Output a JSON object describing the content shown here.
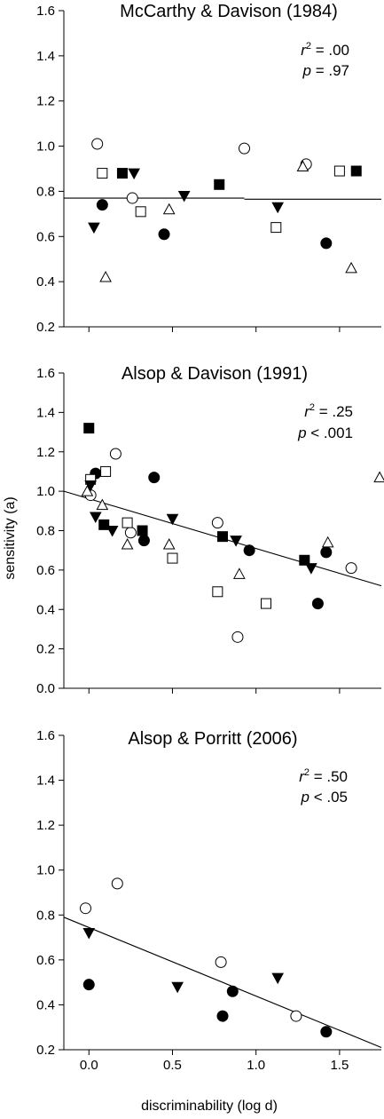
{
  "figure": {
    "ylabel": "sensitivity (a)",
    "xlabel": "discriminability (log d)",
    "x_ticks": [
      "0.0",
      "0.5",
      "1.0",
      "1.5"
    ],
    "xlim": [
      -0.15,
      1.75
    ]
  },
  "chart_data": [
    {
      "type": "scatter",
      "title": "McCarthy & Davison (1984)",
      "stats": {
        "r2_label": "r",
        "r2_sup": "2",
        "r2_value": " = .00",
        "p_label": "p",
        "p_value": " = .97"
      },
      "ylim": [
        0.2,
        1.6
      ],
      "y_ticks": [
        "0.2",
        "0.4",
        "0.6",
        "0.8",
        "1.0",
        "1.2",
        "1.4",
        "1.6"
      ],
      "fit": [
        [
          [
            -0.15,
            0.77
          ],
          [
            0.93,
            0.77
          ]
        ],
        [
          [
            0.93,
            0.765
          ],
          [
            1.75,
            0.765
          ]
        ]
      ],
      "series": [
        {
          "marker": "filled-circle",
          "points": [
            [
              0.08,
              0.74
            ],
            [
              0.45,
              0.61
            ],
            [
              1.42,
              0.57
            ]
          ]
        },
        {
          "marker": "open-circle",
          "points": [
            [
              0.05,
              1.01
            ],
            [
              0.26,
              0.77
            ],
            [
              0.93,
              0.99
            ],
            [
              1.3,
              0.92
            ]
          ]
        },
        {
          "marker": "filled-square",
          "points": [
            [
              0.2,
              0.88
            ],
            [
              0.78,
              0.83
            ],
            [
              1.6,
              0.89
            ]
          ]
        },
        {
          "marker": "open-square",
          "points": [
            [
              0.08,
              0.88
            ],
            [
              0.31,
              0.71
            ],
            [
              1.12,
              0.64
            ],
            [
              1.5,
              0.89
            ]
          ]
        },
        {
          "marker": "filled-triangle-down",
          "points": [
            [
              0.03,
              0.64
            ],
            [
              0.27,
              0.88
            ],
            [
              0.57,
              0.78
            ],
            [
              1.13,
              0.73
            ]
          ]
        },
        {
          "marker": "open-triangle",
          "points": [
            [
              0.1,
              0.42
            ],
            [
              0.48,
              0.72
            ],
            [
              1.28,
              0.91
            ],
            [
              1.57,
              0.46
            ]
          ]
        }
      ]
    },
    {
      "type": "scatter",
      "title": "Alsop & Davison (1991)",
      "stats": {
        "r2_label": "r",
        "r2_sup": "2",
        "r2_value": " = .25",
        "p_label": "p",
        "p_value": " < .001"
      },
      "ylim": [
        0.0,
        1.6
      ],
      "y_ticks": [
        "0.0",
        "0.2",
        "0.4",
        "0.6",
        "0.8",
        "1.0",
        "1.2",
        "1.4",
        "1.6"
      ],
      "fit": [
        [
          [
            -0.15,
            1.0
          ],
          [
            1.75,
            0.52
          ]
        ]
      ],
      "series": [
        {
          "marker": "filled-circle",
          "points": [
            [
              0.04,
              1.09
            ],
            [
              0.33,
              0.75
            ],
            [
              0.39,
              1.07
            ],
            [
              0.96,
              0.7
            ],
            [
              1.37,
              0.43
            ],
            [
              1.42,
              0.69
            ]
          ]
        },
        {
          "marker": "open-circle",
          "points": [
            [
              0.01,
              0.98
            ],
            [
              0.16,
              1.19
            ],
            [
              0.25,
              0.79
            ],
            [
              0.77,
              0.84
            ],
            [
              0.89,
              0.26
            ],
            [
              1.57,
              0.61
            ]
          ]
        },
        {
          "marker": "filled-square",
          "points": [
            [
              0.0,
              1.32
            ],
            [
              0.09,
              0.83
            ],
            [
              0.32,
              0.8
            ],
            [
              0.8,
              0.77
            ],
            [
              1.29,
              0.65
            ]
          ]
        },
        {
          "marker": "open-square",
          "points": [
            [
              0.01,
              1.06
            ],
            [
              0.1,
              1.1
            ],
            [
              0.23,
              0.84
            ],
            [
              0.5,
              0.66
            ],
            [
              0.77,
              0.49
            ],
            [
              1.06,
              0.43
            ]
          ]
        },
        {
          "marker": "filled-triangle-down",
          "points": [
            [
              0.01,
              1.03
            ],
            [
              0.04,
              0.87
            ],
            [
              0.14,
              0.8
            ],
            [
              0.5,
              0.86
            ],
            [
              0.88,
              0.75
            ],
            [
              1.33,
              0.61
            ]
          ]
        },
        {
          "marker": "open-triangle",
          "points": [
            [
              -0.01,
              1.0
            ],
            [
              0.08,
              0.93
            ],
            [
              0.23,
              0.73
            ],
            [
              0.48,
              0.73
            ],
            [
              0.9,
              0.58
            ],
            [
              1.43,
              0.74
            ],
            [
              1.74,
              1.07
            ]
          ]
        }
      ]
    },
    {
      "type": "scatter",
      "title": "Alsop & Porritt (2006)",
      "stats": {
        "r2_label": "r",
        "r2_sup": "2",
        "r2_value": " = .50",
        "p_label": "p",
        "p_value": " < .05"
      },
      "ylim": [
        0.2,
        1.6
      ],
      "y_ticks": [
        "0.2",
        "0.4",
        "0.6",
        "0.8",
        "1.0",
        "1.2",
        "1.4",
        "1.6"
      ],
      "fit": [
        [
          [
            -0.15,
            0.79
          ],
          [
            1.75,
            0.21
          ]
        ]
      ],
      "series": [
        {
          "marker": "filled-circle",
          "points": [
            [
              0.0,
              0.49
            ],
            [
              0.8,
              0.35
            ],
            [
              0.86,
              0.46
            ],
            [
              1.42,
              0.28
            ]
          ]
        },
        {
          "marker": "open-circle",
          "points": [
            [
              -0.02,
              0.83
            ],
            [
              0.17,
              0.94
            ],
            [
              0.79,
              0.59
            ],
            [
              1.24,
              0.35
            ]
          ]
        },
        {
          "marker": "filled-triangle-down",
          "points": [
            [
              0.0,
              0.72
            ],
            [
              0.53,
              0.48
            ],
            [
              1.13,
              0.52
            ]
          ]
        }
      ]
    }
  ]
}
